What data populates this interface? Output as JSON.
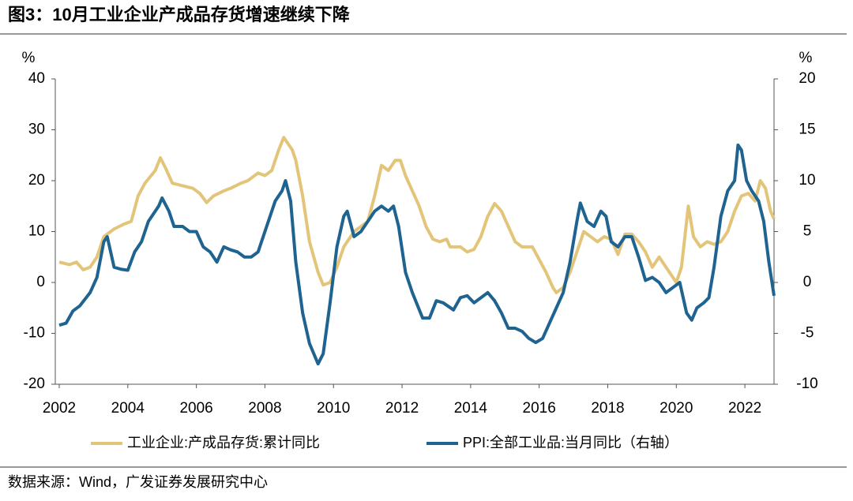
{
  "chart_data": {
    "type": "line",
    "title": "图3：10月工业企业产成品存货增速继续下降",
    "y_label": "%",
    "y2_label": "%",
    "source": "数据来源：Wind，广发证券发展研究中心",
    "xlim": [
      2002,
      2022.85
    ],
    "xticks": [
      2002,
      2004,
      2006,
      2008,
      2010,
      2012,
      2014,
      2016,
      2018,
      2020,
      2022
    ],
    "ylim": [
      -20,
      40
    ],
    "yticks": [
      -20,
      -10,
      0,
      10,
      20,
      30,
      40
    ],
    "y2lim": [
      -10,
      20
    ],
    "y2ticks": [
      -10,
      -5,
      0,
      5,
      10,
      15,
      20
    ],
    "series": [
      {
        "name": "工业企业:产成品存货:累计同比",
        "color": "#e3c57a",
        "x": [
          2002.0,
          2002.3,
          2002.5,
          2002.7,
          2002.9,
          2003.1,
          2003.3,
          2003.6,
          2003.9,
          2004.1,
          2004.3,
          2004.5,
          2004.8,
          2004.95,
          2005.1,
          2005.3,
          2005.6,
          2005.9,
          2006.1,
          2006.3,
          2006.5,
          2006.8,
          2007.0,
          2007.3,
          2007.5,
          2007.8,
          2008.0,
          2008.2,
          2008.4,
          2008.55,
          2008.8,
          2008.9,
          2009.1,
          2009.3,
          2009.55,
          2009.7,
          2009.9,
          2010.1,
          2010.3,
          2010.6,
          2010.8,
          2011.0,
          2011.2,
          2011.4,
          2011.6,
          2011.8,
          2011.95,
          2012.1,
          2012.3,
          2012.5,
          2012.7,
          2012.9,
          2013.1,
          2013.3,
          2013.4,
          2013.7,
          2013.9,
          2014.1,
          2014.3,
          2014.5,
          2014.7,
          2014.9,
          2015.1,
          2015.3,
          2015.5,
          2015.8,
          2016.0,
          2016.2,
          2016.4,
          2016.5,
          2016.7,
          2016.9,
          2017.1,
          2017.3,
          2017.5,
          2017.7,
          2017.9,
          2018.1,
          2018.3,
          2018.5,
          2018.7,
          2018.9,
          2019.1,
          2019.3,
          2019.5,
          2019.8,
          2020.0,
          2020.15,
          2020.35,
          2020.5,
          2020.7,
          2020.9,
          2021.1,
          2021.3,
          2021.5,
          2021.7,
          2021.9,
          2022.1,
          2022.3,
          2022.45,
          2022.6,
          2022.75,
          2022.85
        ],
        "values": [
          4,
          3.5,
          4,
          2.5,
          3,
          5,
          9,
          10.5,
          11.5,
          12,
          17,
          19.5,
          22,
          24.5,
          22.5,
          19.5,
          19,
          18.5,
          17.5,
          15.7,
          17,
          18,
          18.5,
          19.5,
          20,
          21.5,
          21,
          22,
          26,
          28.5,
          26,
          24,
          17,
          8,
          2,
          -0.5,
          0,
          3,
          7,
          10,
          11,
          12,
          17,
          23,
          22,
          24,
          24,
          21,
          18,
          15,
          11,
          8.5,
          8,
          8.5,
          7,
          7,
          6,
          6.5,
          9,
          13,
          15.5,
          14,
          11,
          8,
          7,
          7,
          4.5,
          2,
          -1,
          -2,
          -1,
          2,
          6,
          10,
          9,
          8,
          9,
          8.5,
          5.5,
          9.5,
          9.5,
          8,
          6,
          3,
          5,
          2,
          0,
          3,
          15,
          9,
          7,
          8,
          7.5,
          8,
          10,
          14,
          17,
          17.5,
          16,
          20,
          18.5,
          14,
          12.5
        ]
      },
      {
        "name": "PPI:全部工业品:当月同比（右轴）",
        "color": "#1f6391",
        "axis": "y2",
        "x": [
          2002.0,
          2002.2,
          2002.4,
          2002.6,
          2002.9,
          2003.1,
          2003.3,
          2003.4,
          2003.6,
          2003.8,
          2004.0,
          2004.2,
          2004.4,
          2004.6,
          2004.9,
          2005.0,
          2005.2,
          2005.35,
          2005.6,
          2005.8,
          2006.0,
          2006.2,
          2006.4,
          2006.6,
          2006.8,
          2007.0,
          2007.2,
          2007.4,
          2007.6,
          2007.8,
          2008.0,
          2008.3,
          2008.5,
          2008.6,
          2008.75,
          2008.9,
          2009.1,
          2009.3,
          2009.55,
          2009.7,
          2009.9,
          2010.1,
          2010.3,
          2010.4,
          2010.6,
          2010.8,
          2011.0,
          2011.2,
          2011.4,
          2011.6,
          2011.75,
          2011.9,
          2012.1,
          2012.3,
          2012.6,
          2012.8,
          2013.0,
          2013.2,
          2013.5,
          2013.7,
          2013.9,
          2014.1,
          2014.3,
          2014.5,
          2014.7,
          2014.9,
          2015.1,
          2015.3,
          2015.5,
          2015.7,
          2015.9,
          2016.1,
          2016.3,
          2016.5,
          2016.7,
          2016.9,
          2017.1,
          2017.2,
          2017.4,
          2017.6,
          2017.8,
          2017.95,
          2018.1,
          2018.3,
          2018.5,
          2018.7,
          2018.9,
          2019.1,
          2019.3,
          2019.5,
          2019.7,
          2019.9,
          2020.1,
          2020.3,
          2020.45,
          2020.6,
          2020.8,
          2020.95,
          2021.1,
          2021.3,
          2021.5,
          2021.7,
          2021.8,
          2021.9,
          2022.05,
          2022.2,
          2022.4,
          2022.55,
          2022.7,
          2022.85
        ],
        "values": [
          -4.2,
          -4,
          -2.8,
          -2.3,
          -1,
          0.5,
          4,
          4.5,
          1.5,
          1.3,
          1.2,
          3,
          4,
          6,
          7.5,
          8.3,
          7,
          5.5,
          5.5,
          5,
          5,
          3.5,
          3,
          2,
          3.5,
          3.2,
          3,
          2.5,
          2.5,
          3,
          5,
          8,
          9,
          10,
          8,
          2,
          -3,
          -6,
          -8,
          -7,
          -2,
          3.5,
          6.5,
          7,
          4.5,
          5,
          6,
          7,
          7.5,
          7,
          7.5,
          5.5,
          1,
          -1,
          -3.5,
          -3.5,
          -1.8,
          -2,
          -2.7,
          -1.5,
          -1.3,
          -2,
          -1.5,
          -1,
          -1.8,
          -3,
          -4.5,
          -4.5,
          -4.8,
          -5.5,
          -5.9,
          -5.5,
          -4,
          -2.5,
          -1,
          2,
          6,
          7.8,
          6,
          5.5,
          7,
          6.5,
          4,
          3.5,
          4.5,
          4.5,
          2.5,
          0.2,
          0.5,
          0,
          -1,
          -0.5,
          0,
          -3,
          -3.7,
          -2.5,
          -2,
          -1.5,
          1.5,
          6.5,
          9,
          10,
          13.5,
          13,
          10,
          9,
          8,
          6,
          2,
          -1.3
        ]
      }
    ]
  }
}
